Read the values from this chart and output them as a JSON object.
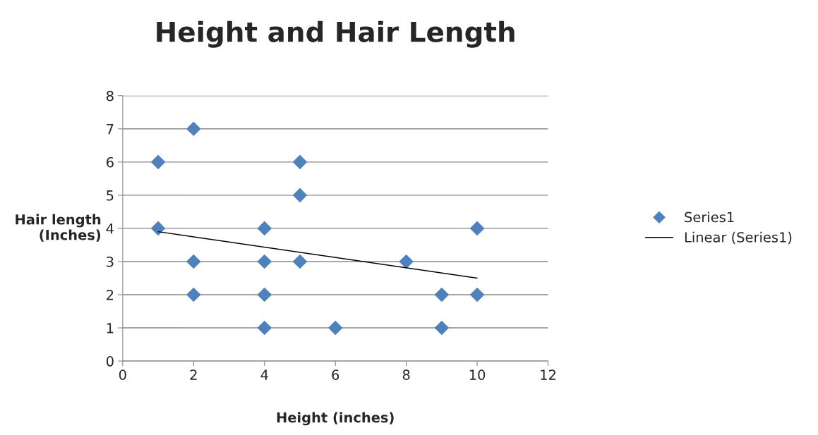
{
  "chart_data": {
    "type": "scatter",
    "title": "Height and Hair Length",
    "xlabel": "Height (inches)",
    "ylabel": "Hair length\n(Inches)",
    "series": [
      {
        "name": "Series1",
        "color": "#4f81bd",
        "marker": "diamond",
        "x": [
          1,
          1,
          2,
          2,
          2,
          4,
          4,
          4,
          4,
          5,
          5,
          5,
          6,
          8,
          9,
          9,
          10,
          10
        ],
        "values": [
          6,
          4,
          7,
          3,
          2,
          4,
          3,
          2,
          1,
          6,
          5,
          3,
          1,
          3,
          2,
          1,
          4,
          2
        ]
      },
      {
        "name": "Linear (Series1)",
        "type": "line",
        "color": "#000000",
        "line_style": "solid",
        "x": [
          1,
          10
        ],
        "values": [
          3.9,
          2.5
        ]
      }
    ],
    "xlim": [
      0,
      12
    ],
    "xticks": [
      0,
      2,
      4,
      6,
      8,
      10,
      12
    ],
    "ylim": [
      0,
      8
    ],
    "yticks": [
      0,
      1,
      2,
      3,
      4,
      5,
      6,
      7,
      8
    ],
    "grid": "y",
    "legend": "right"
  }
}
